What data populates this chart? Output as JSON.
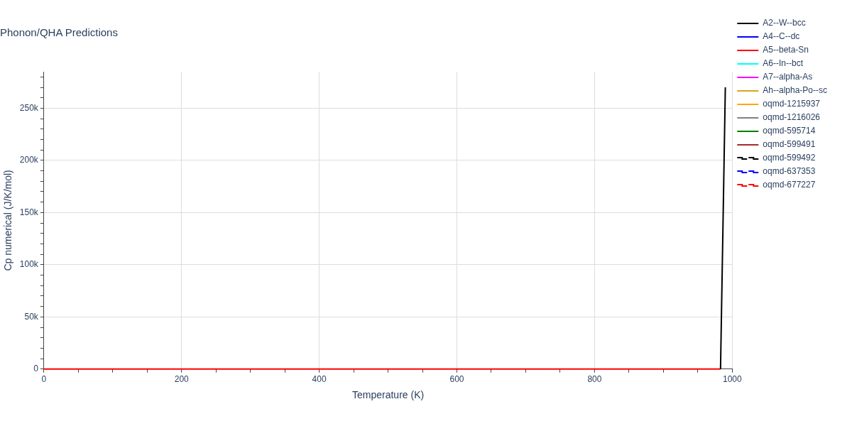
{
  "chart_data": {
    "type": "line",
    "title": "Phonon/QHA Predictions",
    "xlabel": "Temperature (K)",
    "ylabel": "Cp numerical (J/K/mol)",
    "xlim": [
      0,
      1000
    ],
    "ylim": [
      0,
      285000
    ],
    "xticks": [
      0,
      {
        "value": 50,
        "label": null
      },
      {
        "value": 100,
        "label": null
      },
      {
        "value": 150,
        "label": null
      },
      200,
      {
        "value": 250,
        "label": null
      },
      {
        "value": 300,
        "label": null
      },
      {
        "value": 350,
        "label": null
      },
      400,
      {
        "value": 450,
        "label": null
      },
      {
        "value": 500,
        "label": null
      },
      {
        "value": 550,
        "label": null
      },
      600,
      {
        "value": 650,
        "label": null
      },
      {
        "value": 700,
        "label": null
      },
      {
        "value": 750,
        "label": null
      },
      800,
      {
        "value": 850,
        "label": null
      },
      {
        "value": 900,
        "label": null
      },
      {
        "value": 950,
        "label": null
      },
      1000
    ],
    "yticks": [
      0,
      {
        "value": 10000,
        "label": null
      },
      {
        "value": 20000,
        "label": null
      },
      {
        "value": 30000,
        "label": null
      },
      {
        "value": 40000,
        "label": null
      },
      {
        "value": 50000,
        "label": "50k"
      },
      {
        "value": 60000,
        "label": null
      },
      {
        "value": 70000,
        "label": null
      },
      {
        "value": 80000,
        "label": null
      },
      {
        "value": 90000,
        "label": null
      },
      {
        "value": 100000,
        "label": "100k"
      },
      {
        "value": 110000,
        "label": null
      },
      {
        "value": 120000,
        "label": null
      },
      {
        "value": 130000,
        "label": null
      },
      {
        "value": 140000,
        "label": null
      },
      {
        "value": 150000,
        "label": "150k"
      },
      {
        "value": 160000,
        "label": null
      },
      {
        "value": 170000,
        "label": null
      },
      {
        "value": 180000,
        "label": null
      },
      {
        "value": 190000,
        "label": null
      },
      {
        "value": 200000,
        "label": "200k"
      },
      {
        "value": 210000,
        "label": null
      },
      {
        "value": 220000,
        "label": null
      },
      {
        "value": 230000,
        "label": null
      },
      {
        "value": 240000,
        "label": null
      },
      {
        "value": 250000,
        "label": "250k"
      },
      {
        "value": 260000,
        "label": null
      },
      {
        "value": 270000,
        "label": null
      },
      {
        "value": 280000,
        "label": null
      }
    ],
    "grid": true,
    "legend": "top right",
    "marker": "none",
    "series": [
      {
        "name": "A2--W--bcc",
        "color": "#000000",
        "x": [
          983,
          990
        ],
        "values": [
          0,
          270000
        ]
      },
      {
        "name": "A4--C--dc",
        "color": "#0000ff"
      },
      {
        "name": "A5--beta-Sn",
        "color": "#ff0000",
        "x": [
          0,
          983
        ],
        "values": [
          0,
          0
        ]
      },
      {
        "name": "A6--In--bct",
        "color": "#00ffff"
      },
      {
        "name": "A7--alpha-As",
        "color": "#ff00ff"
      },
      {
        "name": "Ah--alpha-Po--sc",
        "color": "#daa520"
      },
      {
        "name": "oqmd-1215937",
        "color": "#ffa500"
      },
      {
        "name": "oqmd-1216026",
        "color": "#808080"
      },
      {
        "name": "oqmd-595714",
        "color": "#008000"
      },
      {
        "name": "oqmd-599491",
        "color": "#a52a2a"
      },
      {
        "name": "oqmd-599492",
        "color": "#000000",
        "line_style": "dashed"
      },
      {
        "name": "oqmd-637353",
        "color": "#0000ff",
        "line_style": "dashed"
      },
      {
        "name": "oqmd-677227",
        "color": "#ff0000",
        "line_style": "dashed"
      }
    ]
  }
}
